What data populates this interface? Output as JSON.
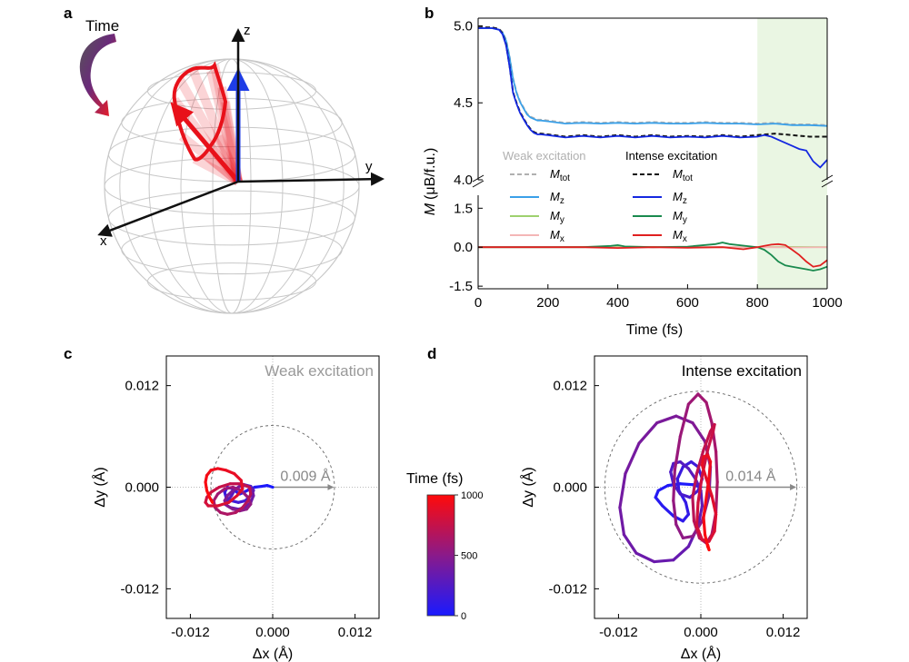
{
  "panel_labels": [
    "a",
    "b",
    "c",
    "d"
  ],
  "panel_a": {
    "time_label": "Time",
    "axes": {
      "x": "x",
      "y": "y",
      "z": "z"
    },
    "colors": {
      "trajectory": "#e8111a",
      "initial_vector": "#1f3de6",
      "sphere": "#c8c8c8",
      "axis": "#111111"
    }
  },
  "chart_data": [
    {
      "id": "b",
      "type": "line",
      "xlabel": "Time (fs)",
      "ylabel_prefix": "M",
      "ylabel_unit": "(μB/f.u.)",
      "xlim": [
        0,
        1000
      ],
      "ylim_upper": [
        4.0,
        5.05
      ],
      "ylim_lower": [
        -1.6,
        2.0
      ],
      "xticks": [
        "0",
        "200",
        "400",
        "600",
        "800",
        "1000"
      ],
      "yticks_upper": [
        "4.0",
        "4.5",
        "5.0"
      ],
      "yticks_lower": [
        "-1.5",
        "0.0",
        "1.5"
      ],
      "highlight_x": [
        800,
        1000
      ],
      "highlight_color": "#eaf6e3",
      "legend_groups": [
        "Weak excitation",
        "Intense excitation"
      ],
      "series": [
        {
          "name": "M",
          "sub": "tot",
          "group": "Weak excitation",
          "color": "#b0b0b0",
          "dash": "5,3",
          "panel": "upper",
          "x": [
            0,
            20,
            40,
            60,
            70,
            80,
            90,
            100,
            110,
            120,
            130,
            140,
            150,
            160,
            170,
            180,
            200,
            250,
            300,
            350,
            400,
            450,
            500,
            550,
            600,
            650,
            700,
            750,
            800,
            850,
            900,
            950,
            1000
          ],
          "y": [
            4.99,
            4.99,
            4.99,
            4.98,
            4.96,
            4.91,
            4.8,
            4.66,
            4.57,
            4.51,
            4.47,
            4.43,
            4.41,
            4.4,
            4.39,
            4.39,
            4.385,
            4.37,
            4.375,
            4.37,
            4.375,
            4.37,
            4.375,
            4.37,
            4.37,
            4.375,
            4.37,
            4.37,
            4.365,
            4.37,
            4.36,
            4.36,
            4.355
          ]
        },
        {
          "name": "M",
          "sub": "z",
          "group": "Weak excitation",
          "color": "#3aa0e8",
          "dash": "",
          "panel": "upper",
          "x": [
            0,
            20,
            40,
            60,
            70,
            80,
            90,
            100,
            110,
            120,
            130,
            140,
            150,
            160,
            170,
            180,
            200,
            250,
            300,
            350,
            400,
            450,
            500,
            550,
            600,
            650,
            700,
            750,
            800,
            850,
            900,
            950,
            1000
          ],
          "y": [
            4.985,
            4.985,
            4.985,
            4.975,
            4.955,
            4.905,
            4.795,
            4.655,
            4.565,
            4.505,
            4.465,
            4.425,
            4.405,
            4.395,
            4.385,
            4.385,
            4.38,
            4.365,
            4.37,
            4.365,
            4.37,
            4.365,
            4.37,
            4.365,
            4.365,
            4.37,
            4.365,
            4.365,
            4.36,
            4.365,
            4.355,
            4.355,
            4.35
          ]
        },
        {
          "name": "M",
          "sub": "y",
          "group": "Weak excitation",
          "color": "#9ed16e",
          "dash": "",
          "panel": "lower",
          "x": [
            0,
            200,
            400,
            600,
            800,
            900,
            1000
          ],
          "y": [
            0.0,
            0.0,
            0.02,
            0.0,
            0.0,
            0.01,
            0.0
          ]
        },
        {
          "name": "M",
          "sub": "x",
          "group": "Weak excitation",
          "color": "#f4b6b6",
          "dash": "",
          "panel": "lower",
          "x": [
            0,
            200,
            400,
            600,
            800,
            900,
            1000
          ],
          "y": [
            0.0,
            0.0,
            -0.01,
            0.0,
            0.0,
            -0.01,
            0.0
          ]
        },
        {
          "name": "M",
          "sub": "tot",
          "group": "Intense excitation",
          "color": "#111111",
          "dash": "5,3",
          "panel": "upper",
          "x": [
            0,
            20,
            40,
            60,
            70,
            80,
            90,
            100,
            110,
            120,
            130,
            140,
            150,
            160,
            170,
            180,
            200,
            250,
            300,
            350,
            400,
            450,
            500,
            550,
            600,
            650,
            700,
            750,
            800,
            850,
            900,
            950,
            1000
          ],
          "y": [
            4.99,
            4.99,
            4.99,
            4.98,
            4.95,
            4.88,
            4.74,
            4.57,
            4.5,
            4.44,
            4.4,
            4.36,
            4.33,
            4.31,
            4.3,
            4.3,
            4.295,
            4.28,
            4.29,
            4.28,
            4.29,
            4.28,
            4.29,
            4.28,
            4.285,
            4.28,
            4.29,
            4.28,
            4.29,
            4.3,
            4.29,
            4.28,
            4.28
          ]
        },
        {
          "name": "M",
          "sub": "z",
          "group": "Intense excitation",
          "color": "#1428e0",
          "dash": "",
          "panel": "upper",
          "x": [
            0,
            20,
            40,
            60,
            70,
            80,
            90,
            100,
            110,
            120,
            130,
            140,
            150,
            160,
            170,
            180,
            200,
            250,
            300,
            350,
            400,
            450,
            500,
            550,
            600,
            650,
            700,
            750,
            800,
            820,
            840,
            860,
            880,
            900,
            920,
            940,
            960,
            980,
            1000
          ],
          "y": [
            4.985,
            4.985,
            4.985,
            4.975,
            4.945,
            4.875,
            4.735,
            4.565,
            4.495,
            4.435,
            4.395,
            4.355,
            4.325,
            4.305,
            4.295,
            4.295,
            4.29,
            4.275,
            4.285,
            4.275,
            4.285,
            4.275,
            4.285,
            4.275,
            4.28,
            4.275,
            4.285,
            4.275,
            4.28,
            4.29,
            4.28,
            4.26,
            4.24,
            4.22,
            4.2,
            4.19,
            4.12,
            4.08,
            4.13
          ]
        },
        {
          "name": "M",
          "sub": "y",
          "group": "Intense excitation",
          "color": "#1a8a4e",
          "dash": "",
          "panel": "lower",
          "x": [
            0,
            100,
            200,
            300,
            380,
            400,
            420,
            500,
            600,
            680,
            700,
            720,
            800,
            820,
            840,
            860,
            880,
            900,
            920,
            940,
            960,
            980,
            1000
          ],
          "y": [
            0.0,
            0.0,
            0.0,
            0.0,
            0.05,
            0.08,
            0.03,
            0.0,
            0.02,
            0.12,
            0.18,
            0.12,
            0.0,
            -0.1,
            -0.3,
            -0.55,
            -0.7,
            -0.75,
            -0.8,
            -0.85,
            -0.9,
            -0.85,
            -0.75
          ]
        },
        {
          "name": "M",
          "sub": "x",
          "group": "Intense excitation",
          "color": "#e02020",
          "dash": "",
          "panel": "lower",
          "x": [
            0,
            100,
            200,
            300,
            400,
            500,
            600,
            700,
            760,
            800,
            820,
            840,
            860,
            880,
            900,
            920,
            940,
            960,
            980,
            1000
          ],
          "y": [
            0.0,
            0.0,
            0.0,
            0.0,
            -0.03,
            0.0,
            -0.02,
            0.0,
            -0.08,
            0.0,
            0.05,
            0.1,
            0.12,
            0.08,
            -0.1,
            -0.3,
            -0.55,
            -0.75,
            -0.7,
            -0.5
          ]
        }
      ]
    },
    {
      "id": "c",
      "type": "line",
      "title": "Weak excitation",
      "xlabel": "Δx (Å)",
      "ylabel": "Δy (Å)",
      "xlim": [
        -0.0155,
        0.0155
      ],
      "ylim": [
        -0.0155,
        0.0155
      ],
      "ticks": [
        "-0.012",
        "0.000",
        "0.012"
      ],
      "circle_radius": 0.009,
      "arrow_label": "0.009 Å",
      "color_range": [
        0,
        1000
      ],
      "trajectory": {
        "x": [
          0.0,
          -0.0008,
          -0.0016,
          -0.0026,
          -0.0035,
          -0.0042,
          -0.0048,
          -0.0052,
          -0.0058,
          -0.0066,
          -0.007,
          -0.0068,
          -0.006,
          -0.005,
          -0.004,
          -0.0032,
          -0.0028,
          -0.0032,
          -0.0042,
          -0.005,
          -0.0056,
          -0.006,
          -0.0066,
          -0.007,
          -0.0062,
          -0.005,
          -0.004,
          -0.0032,
          -0.0028,
          -0.003,
          -0.0038,
          -0.0048,
          -0.0058,
          -0.0066,
          -0.007,
          -0.0066,
          -0.0058,
          -0.0048,
          -0.0038,
          -0.0032,
          -0.0036,
          -0.0046,
          -0.0058,
          -0.007,
          -0.008,
          -0.0086,
          -0.0084,
          -0.0076,
          -0.0066,
          -0.0054,
          -0.0044,
          -0.0036,
          -0.0032,
          -0.0034,
          -0.0046,
          -0.0062,
          -0.0078,
          -0.009,
          -0.0096,
          -0.0098,
          -0.0094,
          -0.008,
          -0.0064,
          -0.0052,
          -0.0044,
          -0.0046,
          -0.0056,
          -0.0068,
          -0.008,
          -0.009,
          -0.0096,
          -0.0098,
          -0.0096,
          -0.0092,
          -0.0088
        ],
        "y": [
          0.0,
          0.0002,
          0.0001,
          0.0,
          -0.0003,
          -0.0006,
          -0.0008,
          -0.0006,
          -0.0002,
          0.0,
          -0.0006,
          -0.0012,
          -0.0016,
          -0.0018,
          -0.0016,
          -0.001,
          -0.0004,
          0.0001,
          0.0003,
          0.0,
          -0.0004,
          -0.001,
          -0.0016,
          -0.002,
          -0.0024,
          -0.0026,
          -0.0024,
          -0.0018,
          -0.001,
          -0.0002,
          0.0002,
          0.0001,
          -0.0004,
          -0.001,
          -0.0016,
          -0.0022,
          -0.0026,
          -0.0028,
          -0.0026,
          -0.002,
          -0.0012,
          -0.0004,
          0.0,
          -0.0002,
          -0.0008,
          -0.0016,
          -0.0024,
          -0.003,
          -0.0032,
          -0.003,
          -0.0024,
          -0.0016,
          -0.0008,
          0.0,
          0.0004,
          0.0004,
          0.0,
          -0.0006,
          -0.0012,
          -0.0018,
          -0.0022,
          -0.0022,
          -0.0018,
          -0.001,
          -0.0002,
          0.0008,
          0.0016,
          0.002,
          0.0022,
          0.002,
          0.0014,
          0.0006,
          -0.0004,
          -0.0012,
          -0.0018
        ]
      }
    },
    {
      "id": "d",
      "type": "line",
      "title": "Intense excitation",
      "xlabel": "Δx (Å)",
      "ylabel": "Δy (Å)",
      "xlim": [
        -0.0155,
        0.0155
      ],
      "ylim": [
        -0.0155,
        0.0155
      ],
      "ticks": [
        "-0.012",
        "0.000",
        "0.012"
      ],
      "circle_radius": 0.014,
      "arrow_label": "0.014 Å",
      "color_range": [
        0,
        1000
      ],
      "trajectory": {
        "x": [
          0.0,
          -0.0012,
          -0.003,
          -0.0048,
          -0.0062,
          -0.0066,
          -0.0056,
          -0.004,
          -0.0026,
          -0.0018,
          -0.0022,
          -0.0032,
          -0.0034,
          -0.0026,
          -0.0014,
          -0.0004,
          0.0002,
          -0.0004,
          -0.0016,
          -0.003,
          -0.004,
          -0.0044,
          -0.004,
          -0.003,
          -0.0018,
          -0.0008,
          0.0,
          0.0002,
          -0.0004,
          -0.0018,
          -0.004,
          -0.0068,
          -0.0094,
          -0.0112,
          -0.0118,
          -0.011,
          -0.009,
          -0.0064,
          -0.0036,
          -0.0012,
          0.0006,
          0.0014,
          0.0012,
          0.0002,
          -0.0012,
          -0.0026,
          -0.0036,
          -0.004,
          -0.0038,
          -0.003,
          -0.0018,
          -0.0004,
          0.0008,
          0.0016,
          0.0022,
          0.0024,
          0.0022,
          0.0016,
          0.0008,
          -0.0002,
          -0.001,
          -0.0012,
          -0.0006,
          0.0004,
          0.0014,
          0.002,
          0.0018,
          0.001,
          0.0002,
          -0.0004,
          -0.0006,
          0.0002,
          0.0012,
          0.002,
          0.0022,
          0.0016,
          0.0008,
          0.0002,
          0.0004,
          0.001,
          0.0014,
          0.0012,
          0.0008,
          0.0004,
          0.0006,
          0.001,
          0.0012,
          0.001
        ],
        "y": [
          0.0,
          0.0003,
          0.0004,
          0.0002,
          -0.0004,
          -0.0012,
          -0.0022,
          -0.0034,
          -0.004,
          -0.0032,
          -0.0018,
          -0.0004,
          0.001,
          0.0024,
          0.003,
          0.0024,
          0.001,
          -0.0004,
          -0.0012,
          -0.0008,
          0.0004,
          0.0018,
          0.0028,
          0.003,
          0.0022,
          0.001,
          -0.0004,
          -0.0022,
          -0.0046,
          -0.007,
          -0.0086,
          -0.0088,
          -0.0078,
          -0.0056,
          -0.0024,
          0.0016,
          0.0052,
          0.0076,
          0.0084,
          0.0076,
          0.0054,
          0.0024,
          -0.001,
          -0.004,
          -0.0058,
          -0.006,
          -0.0044,
          -0.0016,
          0.002,
          0.006,
          0.0098,
          0.011,
          0.01,
          0.0076,
          0.0042,
          0.0006,
          -0.003,
          -0.0056,
          -0.0066,
          -0.006,
          -0.004,
          -0.0012,
          0.0016,
          0.0044,
          0.0066,
          0.0074,
          0.0066,
          0.0044,
          0.0014,
          -0.0018,
          -0.0046,
          -0.0062,
          -0.0064,
          -0.0052,
          -0.0032,
          -0.001,
          0.001,
          0.0026,
          0.0036,
          0.0038,
          0.003,
          0.0012,
          -0.0012,
          -0.0036,
          -0.0056,
          -0.007,
          -0.0074,
          -0.0068
        ]
      }
    }
  ],
  "colorbar": {
    "label": "Time (fs)",
    "ticks": [
      "0",
      "500",
      "1000"
    ],
    "range": [
      0,
      1000
    ],
    "color_start": "#1a1aff",
    "color_mid": "#8a1a8a",
    "color_end": "#ff0a0a"
  }
}
